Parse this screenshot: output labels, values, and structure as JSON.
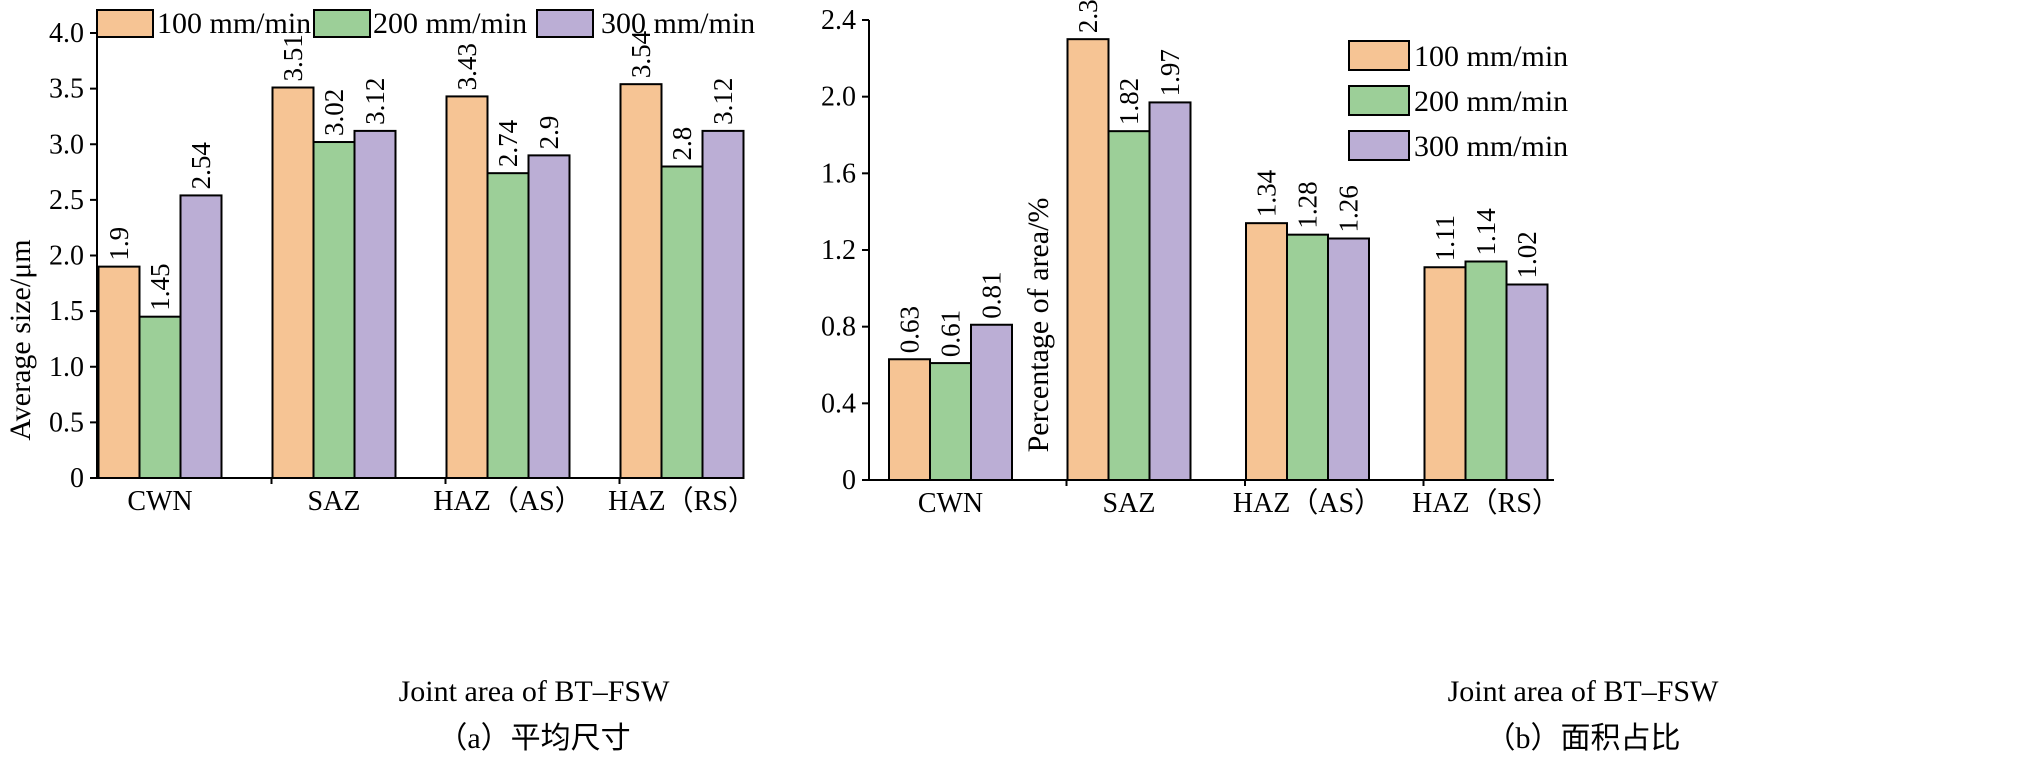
{
  "chart_data": [
    {
      "type": "bar",
      "title": "",
      "caption": "（a）平均尺寸",
      "xlabel": "Joint area of BT–FSW",
      "ylabel": "Average size/μm",
      "ylim": [
        0,
        4.0
      ],
      "yticks": [
        "0",
        "0.5",
        "1.0",
        "1.5",
        "2.0",
        "2.5",
        "3.0",
        "3.5",
        "4.0"
      ],
      "categories": [
        "CWN",
        "SAZ",
        "HAZ（AS）",
        "HAZ（RS）"
      ],
      "series": [
        {
          "name": "100 mm/min",
          "color": "#f6c494",
          "values": [
            1.9,
            3.51,
            3.43,
            3.54
          ],
          "labels": [
            "1.9",
            "3.51",
            "3.43",
            "3.54"
          ]
        },
        {
          "name": "200 mm/min",
          "color": "#9ccf98",
          "values": [
            1.45,
            3.02,
            2.74,
            2.8
          ],
          "labels": [
            "1.45",
            "3.02",
            "2.74",
            "2.8"
          ]
        },
        {
          "name": "300 mm/min",
          "color": "#bbaed5",
          "values": [
            2.54,
            3.12,
            2.9,
            3.12
          ],
          "labels": [
            "2.54",
            "3.12",
            "2.9",
            "3.12"
          ]
        }
      ],
      "legend_position": "top",
      "grid": false
    },
    {
      "type": "bar",
      "title": "",
      "caption": "（b）面积占比",
      "xlabel": "Joint area of BT–FSW",
      "ylabel": "Percentage of area/%",
      "ylim": [
        0,
        2.4
      ],
      "yticks": [
        "0",
        "0.4",
        "0.8",
        "1.2",
        "1.6",
        "2.0",
        "2.4"
      ],
      "categories": [
        "CWN",
        "SAZ",
        "HAZ（AS）",
        "HAZ（RS）"
      ],
      "series": [
        {
          "name": "100 mm/min",
          "color": "#f6c494",
          "values": [
            0.63,
            2.3,
            1.34,
            1.11
          ],
          "labels": [
            "0.63",
            "2.3",
            "1.34",
            "1.11"
          ]
        },
        {
          "name": "200 mm/min",
          "color": "#9ccf98",
          "values": [
            0.61,
            1.82,
            1.28,
            1.14
          ],
          "labels": [
            "0.61",
            "1.82",
            "1.28",
            "1.14"
          ]
        },
        {
          "name": "300 mm/min",
          "color": "#bbaed5",
          "values": [
            0.81,
            1.97,
            1.26,
            1.02
          ],
          "labels": [
            "0.81",
            "1.97",
            "1.26",
            "1.02"
          ]
        }
      ],
      "legend_position": "top-right",
      "grid": false
    }
  ]
}
